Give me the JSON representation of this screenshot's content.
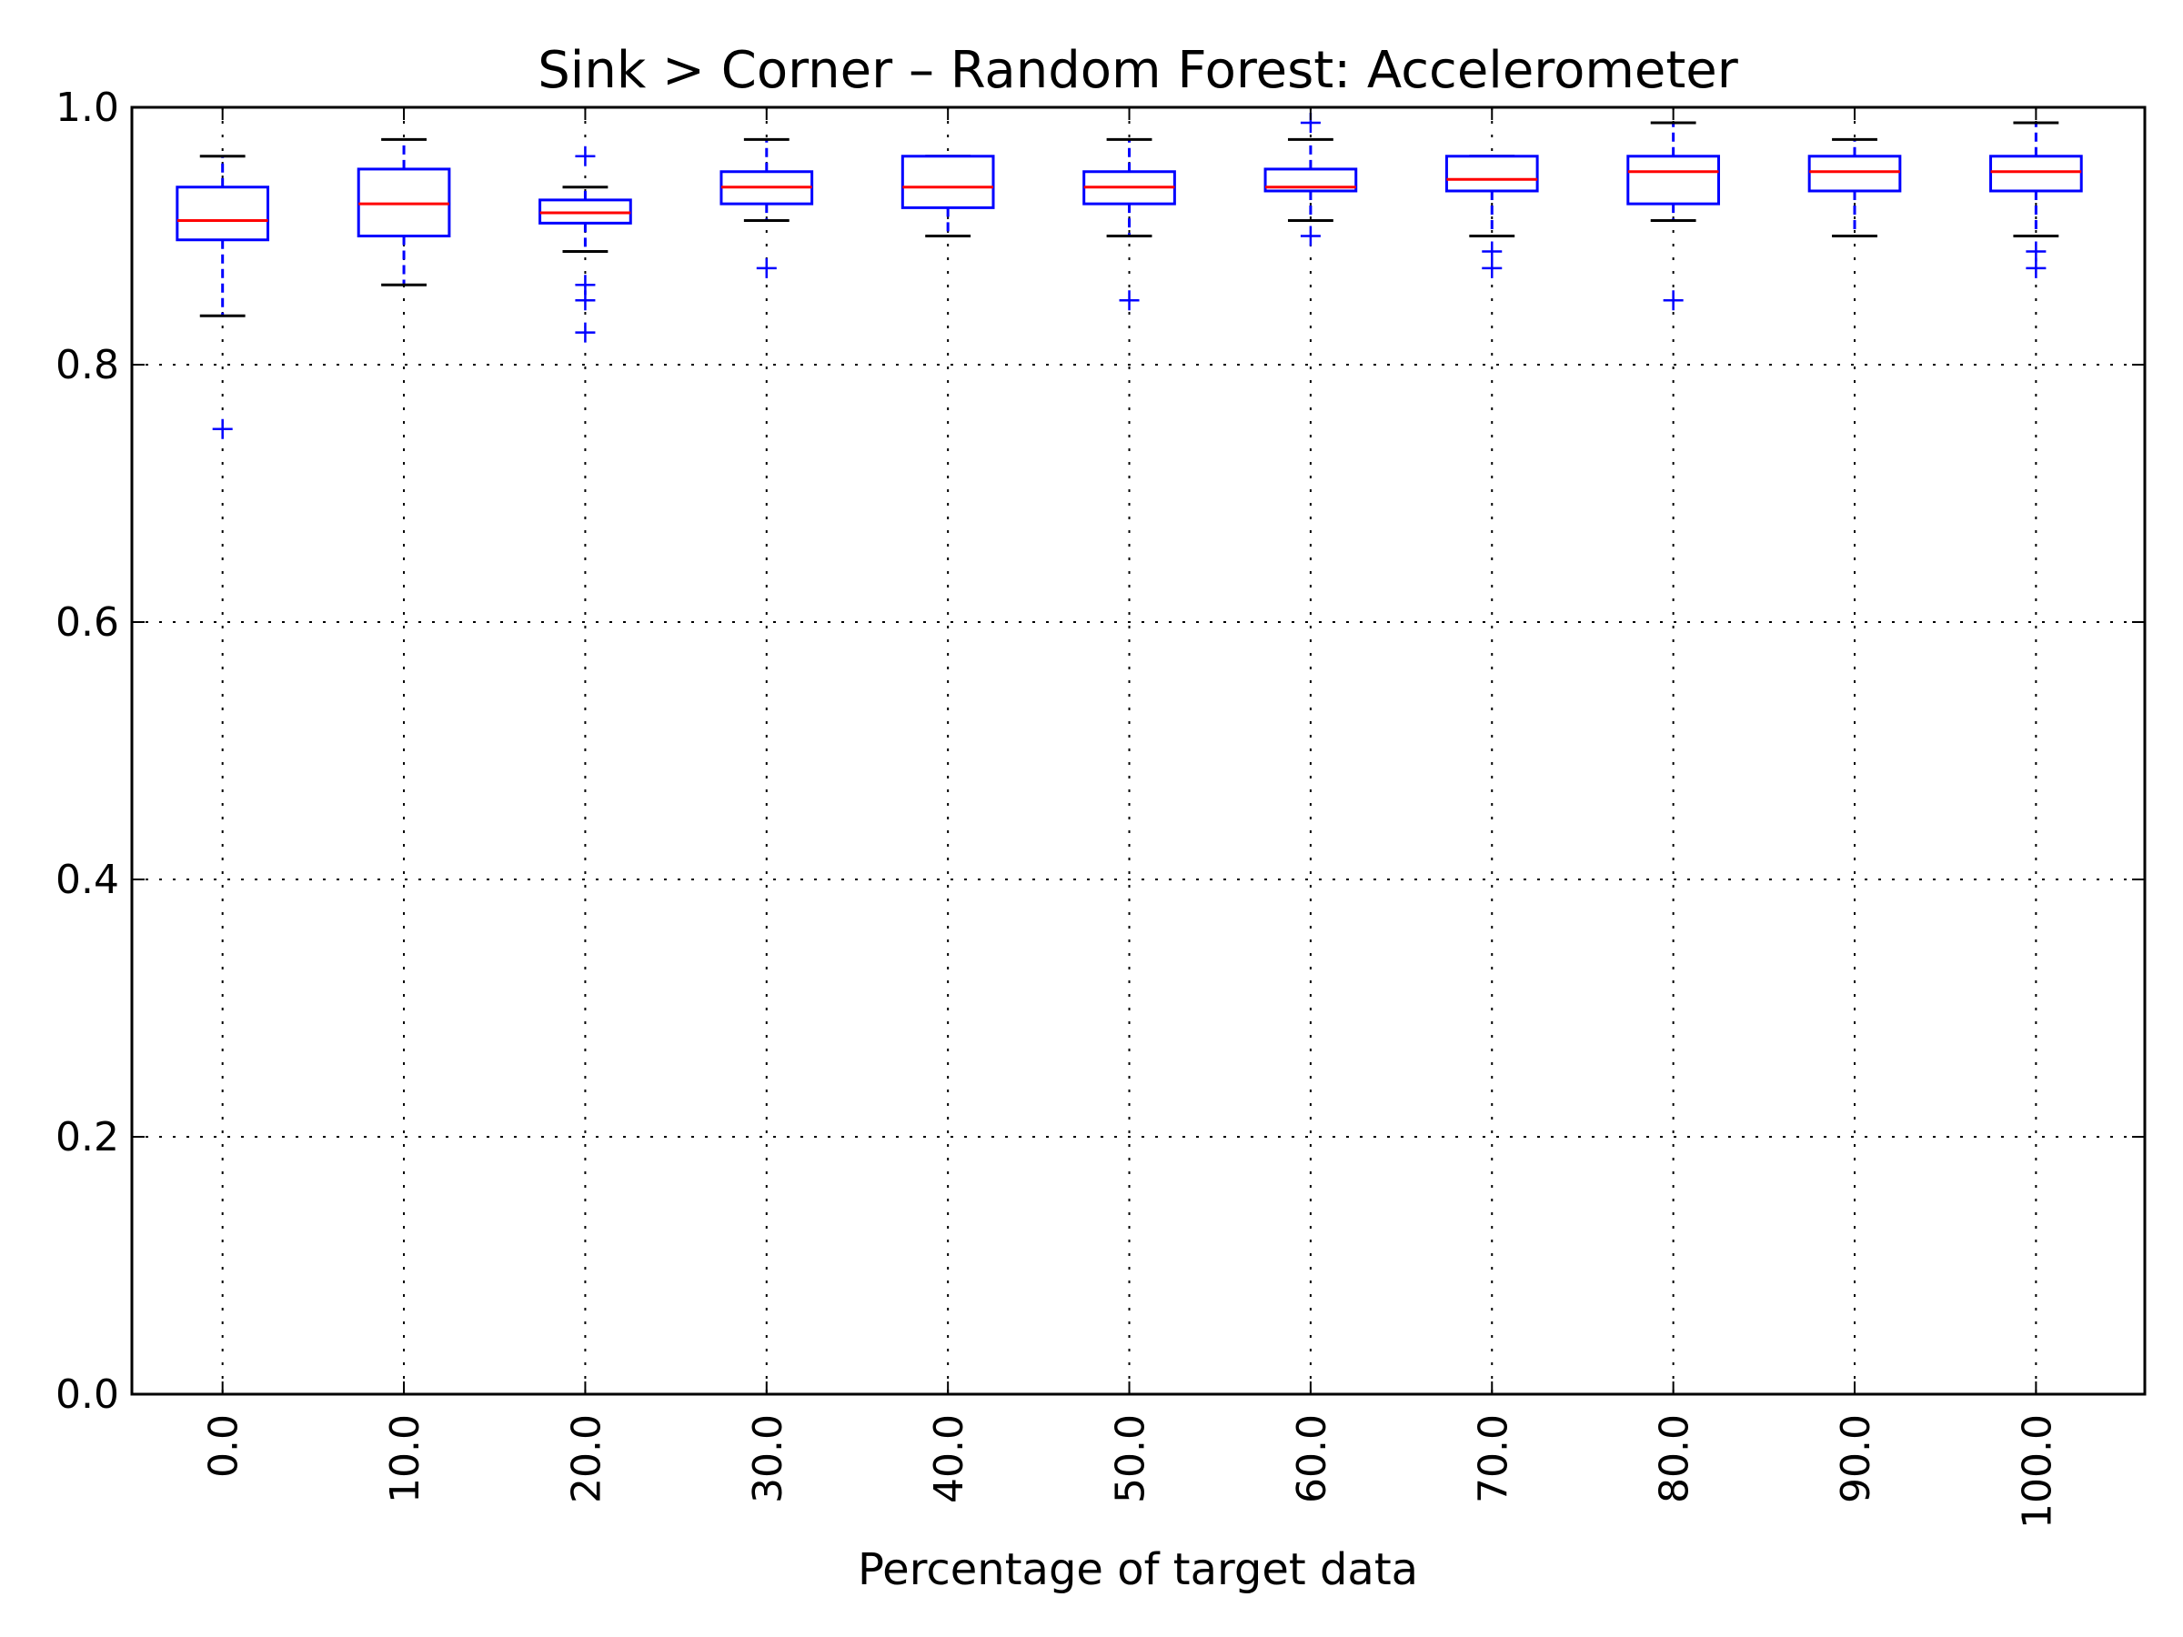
{
  "chart_data": {
    "type": "box",
    "title": "Sink > Corner – Random Forest: Accelerometer",
    "xlabel": "Percentage of target data",
    "ylabel": "",
    "ylim": [
      0.0,
      1.0
    ],
    "yticks": [
      "0.0",
      "0.2",
      "0.4",
      "0.6",
      "0.8",
      "1.0"
    ],
    "grid": true,
    "legend": "none",
    "categories": [
      "0.0",
      "10.0",
      "20.0",
      "30.0",
      "40.0",
      "50.0",
      "60.0",
      "70.0",
      "80.0",
      "90.0",
      "100.0"
    ],
    "boxes": [
      {
        "whisker_low": 0.838,
        "q1": 0.897,
        "median": 0.912,
        "q3": 0.938,
        "whisker_high": 0.962,
        "outliers": [
          0.75
        ]
      },
      {
        "whisker_low": 0.862,
        "q1": 0.9,
        "median": 0.925,
        "q3": 0.952,
        "whisker_high": 0.975,
        "outliers": []
      },
      {
        "whisker_low": 0.888,
        "q1": 0.91,
        "median": 0.918,
        "q3": 0.928,
        "whisker_high": 0.938,
        "outliers": [
          0.962,
          0.862,
          0.85,
          0.825
        ]
      },
      {
        "whisker_low": 0.912,
        "q1": 0.925,
        "median": 0.938,
        "q3": 0.95,
        "whisker_high": 0.975,
        "outliers": [
          0.875
        ]
      },
      {
        "whisker_low": 0.9,
        "q1": 0.922,
        "median": 0.938,
        "q3": 0.962,
        "whisker_high": 0.962,
        "outliers": []
      },
      {
        "whisker_low": 0.9,
        "q1": 0.925,
        "median": 0.938,
        "q3": 0.95,
        "whisker_high": 0.975,
        "outliers": [
          0.85
        ]
      },
      {
        "whisker_low": 0.912,
        "q1": 0.935,
        "median": 0.938,
        "q3": 0.952,
        "whisker_high": 0.975,
        "outliers": [
          0.988,
          0.9
        ]
      },
      {
        "whisker_low": 0.9,
        "q1": 0.935,
        "median": 0.944,
        "q3": 0.962,
        "whisker_high": 0.962,
        "outliers": [
          0.888,
          0.875
        ]
      },
      {
        "whisker_low": 0.912,
        "q1": 0.925,
        "median": 0.95,
        "q3": 0.962,
        "whisker_high": 0.988,
        "outliers": [
          0.85
        ]
      },
      {
        "whisker_low": 0.9,
        "q1": 0.935,
        "median": 0.95,
        "q3": 0.962,
        "whisker_high": 0.975,
        "outliers": []
      },
      {
        "whisker_low": 0.9,
        "q1": 0.935,
        "median": 0.95,
        "q3": 0.962,
        "whisker_high": 0.988,
        "outliers": [
          0.888,
          0.875
        ]
      }
    ],
    "colors": {
      "box": "#0000ff",
      "median": "#ff0000",
      "whisker": "#0000ff",
      "cap": "#000000",
      "flier": "#0000ff",
      "grid": "#000000",
      "axes": "#000000"
    }
  }
}
